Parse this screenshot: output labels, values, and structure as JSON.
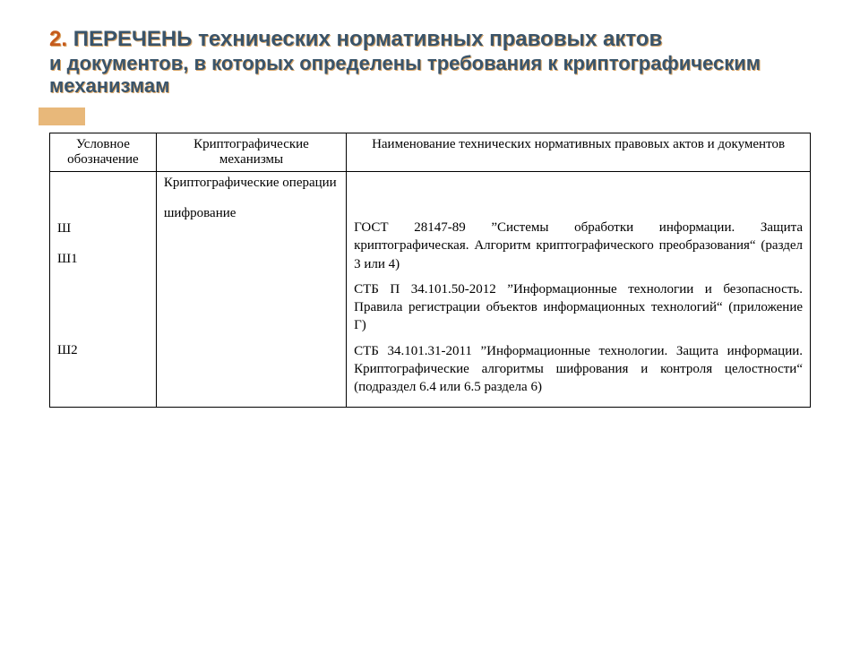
{
  "colors": {
    "title_color": "#3a546a",
    "title_shadow": "#d9a76a",
    "accent_bar": "#e8b87a",
    "num_color": "#c55a1b",
    "border_color": "#000000",
    "background": "#ffffff",
    "body_text": "#000000"
  },
  "typography": {
    "title_font": "Trebuchet MS",
    "title_fontsize_pt": 18,
    "body_font": "Times New Roman",
    "body_fontsize_pt": 12
  },
  "title": {
    "number": "2.",
    "line1": "ПЕРЕЧЕНЬ технических нормативных правовых актов",
    "line2": "и документов, в которых определены требования к криптографическим механизмам"
  },
  "table": {
    "columns": [
      {
        "key": "code",
        "label": "Условное обозначение",
        "width_pct": 14,
        "align": "center"
      },
      {
        "key": "mech",
        "label": "Криптографические механизмы",
        "width_pct": 25,
        "align": "center"
      },
      {
        "key": "docs",
        "label": "Наименование технических нормативных правовых актов и документов",
        "width_pct": 61,
        "align": "center"
      }
    ],
    "body": {
      "code_cell": "\n\n\nШ\n\nШ1\n\n\n\n\n\nШ2",
      "mech_cell": "Криптографические операции\n\nшифрование",
      "docs": [
        "ГОСТ 28147-89 ”Системы обработки информации. Защита криптографическая. Алгоритм криптографического преобразования“ (раздел 3 или 4)",
        "СТБ П 34.101.50-2012 ”Информационные технологии и безопасность. Правила регистрации объектов информационных технологий“ (приложение Г)",
        "СТБ 34.101.31-2011 ”Информационные технологии. Защита информации. Криптографические алгоритмы шифрования и контроля целостности“ (подраздел 6.4 или 6.5 раздела 6)"
      ]
    }
  }
}
